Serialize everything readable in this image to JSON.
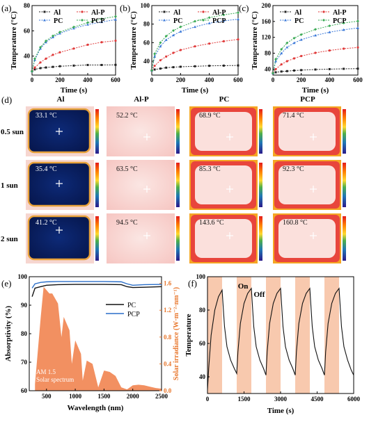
{
  "panel_labels": {
    "a": "(a)",
    "b": "(b)",
    "c": "(c)",
    "d": "(d)",
    "e": "(e)",
    "f": "(f)"
  },
  "colors": {
    "Al": "#222222",
    "Al-P": "#e03a3a",
    "PC": "#3a78d8",
    "PCP": "#3aaa55",
    "PC_abs": "#111111",
    "PCP_abs": "#2a6ec8",
    "spectrum": "#f07c45",
    "onoff_band": "#f8c9ae",
    "irr_axis": "#e8762b"
  },
  "chart_data": [
    {
      "id": "a",
      "type": "line",
      "xlabel": "Time (s)",
      "ylabel": "Temperature (°C)",
      "xlim": [
        0,
        600
      ],
      "ylim": [
        25,
        80
      ],
      "xticks": [
        0,
        200,
        400,
        600
      ],
      "yticks": [
        40,
        60,
        80
      ],
      "legend": [
        "Al",
        "Al-P",
        "PC",
        "PCP"
      ],
      "series": [
        {
          "name": "Al",
          "x": [
            0,
            20,
            60,
            100,
            150,
            200,
            300,
            400,
            500,
            600
          ],
          "values": [
            28,
            29.5,
            30.5,
            31,
            31.5,
            32,
            32.5,
            33,
            33,
            33.1
          ]
        },
        {
          "name": "Al-P",
          "x": [
            0,
            20,
            60,
            100,
            150,
            200,
            300,
            400,
            500,
            600
          ],
          "values": [
            28,
            31,
            35,
            38,
            41,
            43,
            46,
            49,
            51,
            52.2
          ]
        },
        {
          "name": "PC",
          "x": [
            0,
            20,
            60,
            100,
            150,
            200,
            300,
            400,
            500,
            600
          ],
          "values": [
            28,
            37,
            46,
            51,
            55,
            58,
            62,
            65,
            67,
            68.9
          ]
        },
        {
          "name": "PCP",
          "x": [
            0,
            20,
            60,
            100,
            150,
            200,
            300,
            400,
            500,
            600
          ],
          "values": [
            28,
            38,
            47,
            52,
            56,
            59,
            63,
            66.5,
            69.5,
            71.4
          ]
        }
      ]
    },
    {
      "id": "b",
      "type": "line",
      "xlabel": "Time (s)",
      "ylabel": "Temperature (°C)",
      "xlim": [
        0,
        600
      ],
      "ylim": [
        25,
        100
      ],
      "xticks": [
        0,
        200,
        400,
        600
      ],
      "yticks": [
        40,
        60,
        80,
        100
      ],
      "legend": [
        "Al",
        "Al-P",
        "PC",
        "PCP"
      ],
      "series": [
        {
          "name": "Al",
          "x": [
            0,
            20,
            60,
            100,
            150,
            200,
            300,
            400,
            500,
            600
          ],
          "values": [
            30,
            31,
            32,
            33,
            33.5,
            34,
            34.5,
            35,
            35.2,
            35.4
          ]
        },
        {
          "name": "Al-P",
          "x": [
            0,
            20,
            60,
            100,
            150,
            200,
            300,
            400,
            500,
            600
          ],
          "values": [
            30,
            35,
            41,
            45,
            49,
            52,
            56,
            59,
            61.5,
            63.5
          ]
        },
        {
          "name": "PC",
          "x": [
            0,
            20,
            60,
            100,
            150,
            200,
            300,
            400,
            500,
            600
          ],
          "values": [
            30,
            45,
            56,
            63,
            68,
            72,
            77,
            81,
            83.5,
            85.3
          ]
        },
        {
          "name": "PCP",
          "x": [
            0,
            20,
            60,
            100,
            150,
            200,
            300,
            400,
            500,
            600
          ],
          "values": [
            30,
            48,
            60,
            67,
            73,
            77,
            83,
            87,
            90,
            92.3
          ]
        }
      ]
    },
    {
      "id": "c",
      "type": "line",
      "xlabel": "Time (s)",
      "ylabel": "Temperature (°C)",
      "xlim": [
        0,
        600
      ],
      "ylim": [
        25,
        200
      ],
      "xticks": [
        0,
        200,
        400,
        600
      ],
      "yticks": [
        40,
        80,
        120,
        160,
        200
      ],
      "legend": [
        "Al",
        "Al-P",
        "PC",
        "PCP"
      ],
      "series": [
        {
          "name": "Al",
          "x": [
            0,
            20,
            60,
            100,
            150,
            200,
            300,
            400,
            500,
            600
          ],
          "values": [
            30,
            32,
            34,
            35,
            36.5,
            37.5,
            39,
            40,
            40.8,
            41.2
          ]
        },
        {
          "name": "Al-P",
          "x": [
            0,
            20,
            60,
            100,
            150,
            200,
            300,
            400,
            500,
            600
          ],
          "values": [
            30,
            40,
            52,
            60,
            67,
            73,
            81,
            87,
            91.5,
            94.5
          ]
        },
        {
          "name": "PC",
          "x": [
            0,
            20,
            60,
            100,
            150,
            200,
            300,
            400,
            500,
            600
          ],
          "values": [
            30,
            60,
            80,
            95,
            106,
            114,
            125,
            133,
            139,
            143.6
          ]
        },
        {
          "name": "PCP",
          "x": [
            0,
            20,
            60,
            100,
            150,
            200,
            300,
            400,
            500,
            600
          ],
          "values": [
            30,
            65,
            90,
            106,
            118,
            127,
            140,
            149,
            156,
            160.8
          ]
        }
      ]
    },
    {
      "id": "d",
      "type": "table",
      "columns": [
        "Al",
        "Al-P",
        "PC",
        "PCP"
      ],
      "rows": [
        "0.5 sun",
        "1 sun",
        "2 sun"
      ],
      "cells": [
        [
          "33.1 °C",
          "52.2 °C",
          "68.9 °C",
          "71.4 °C"
        ],
        [
          "35.4 °C",
          "63.5 °C",
          "85.3 °C",
          "92.3 °C"
        ],
        [
          "41.2 °C",
          "94.5 °C",
          "143.6 °C",
          "160.8 °C"
        ]
      ]
    },
    {
      "id": "e",
      "type": "line",
      "xlabel": "Wavelength (nm)",
      "ylabel": "Absorptivity (%)",
      "ylabel_right": "Solar irradiance (W·m⁻²·nm⁻¹)",
      "xlim": [
        200,
        2500
      ],
      "ylim": [
        60,
        100
      ],
      "ylim_right": [
        0,
        1.7
      ],
      "xticks": [
        500,
        1000,
        1500,
        2000,
        2500
      ],
      "yticks": [
        60,
        70,
        80,
        90,
        100
      ],
      "yticks_right": [
        0.0,
        0.4,
        0.8,
        1.2,
        1.6
      ],
      "legend": [
        "PC",
        "PCP"
      ],
      "annotation": [
        "AM 1.5",
        "Solar spectrum"
      ],
      "series": [
        {
          "name": "PC",
          "x": [
            250,
            300,
            400,
            500,
            700,
            1000,
            1500,
            1800,
            1900,
            2000,
            2200,
            2500
          ],
          "values": [
            93,
            96,
            96.5,
            97,
            97.2,
            97.3,
            97.3,
            97.2,
            96.5,
            96.2,
            96.3,
            96.5
          ]
        },
        {
          "name": "PCP",
          "x": [
            250,
            300,
            400,
            500,
            700,
            1000,
            1500,
            1800,
            1900,
            2000,
            2200,
            2500
          ],
          "values": [
            96,
            97.5,
            98,
            98.2,
            98.3,
            98.3,
            98.3,
            98.2,
            97.5,
            97,
            97.2,
            97.3
          ]
        },
        {
          "name": "AM 1.5",
          "x": [
            300,
            350,
            400,
            450,
            500,
            550,
            600,
            700,
            760,
            800,
            900,
            940,
            1000,
            1100,
            1130,
            1200,
            1300,
            1400,
            1500,
            1600,
            1700,
            1800,
            1900,
            2000,
            2100,
            2200,
            2300,
            2400,
            2500
          ],
          "values": [
            0.1,
            0.6,
            1.1,
            1.55,
            1.5,
            1.45,
            1.45,
            1.3,
            0.8,
            1.1,
            0.9,
            0.4,
            0.75,
            0.55,
            0.15,
            0.45,
            0.4,
            0.05,
            0.3,
            0.28,
            0.22,
            0.05,
            0.02,
            0.08,
            0.09,
            0.08,
            0.06,
            0.04,
            0.03
          ]
        }
      ]
    },
    {
      "id": "f",
      "type": "line",
      "xlabel": "Time (s)",
      "ylabel": "Temperature",
      "xlim": [
        0,
        6000
      ],
      "ylim": [
        30,
        100
      ],
      "xticks": [
        0,
        1500,
        3000,
        4500,
        6000
      ],
      "yticks": [
        40,
        60,
        80,
        100
      ],
      "annotations": [
        "On",
        "Off"
      ],
      "on_intervals": [
        [
          0,
          600
        ],
        [
          1200,
          1800
        ],
        [
          2400,
          3000
        ],
        [
          3600,
          4200
        ],
        [
          4800,
          5400
        ]
      ],
      "series": [
        {
          "name": "temperature",
          "x": [
            0,
            50,
            150,
            300,
            450,
            600,
            700,
            800,
            950,
            1100,
            1200,
            1250,
            1350,
            1500,
            1650,
            1800,
            1900,
            2000,
            2150,
            2300,
            2400,
            2450,
            2550,
            2700,
            2850,
            3000,
            3100,
            3200,
            3350,
            3500,
            3600,
            3650,
            3750,
            3900,
            4050,
            4200,
            4300,
            4400,
            4550,
            4700,
            4800,
            4850,
            4950,
            5100,
            5250,
            5400,
            5500,
            5600,
            5750,
            5900,
            6000
          ],
          "values": [
            32,
            45,
            65,
            80,
            88,
            92,
            70,
            58,
            50,
            45,
            42,
            55,
            72,
            84,
            90,
            93,
            70,
            58,
            50,
            45,
            41,
            55,
            72,
            84,
            90,
            93,
            70,
            58,
            50,
            45,
            41,
            55,
            72,
            84,
            90,
            93,
            70,
            58,
            50,
            45,
            41,
            55,
            72,
            84,
            90,
            93,
            70,
            58,
            50,
            44,
            41
          ]
        }
      ]
    }
  ]
}
